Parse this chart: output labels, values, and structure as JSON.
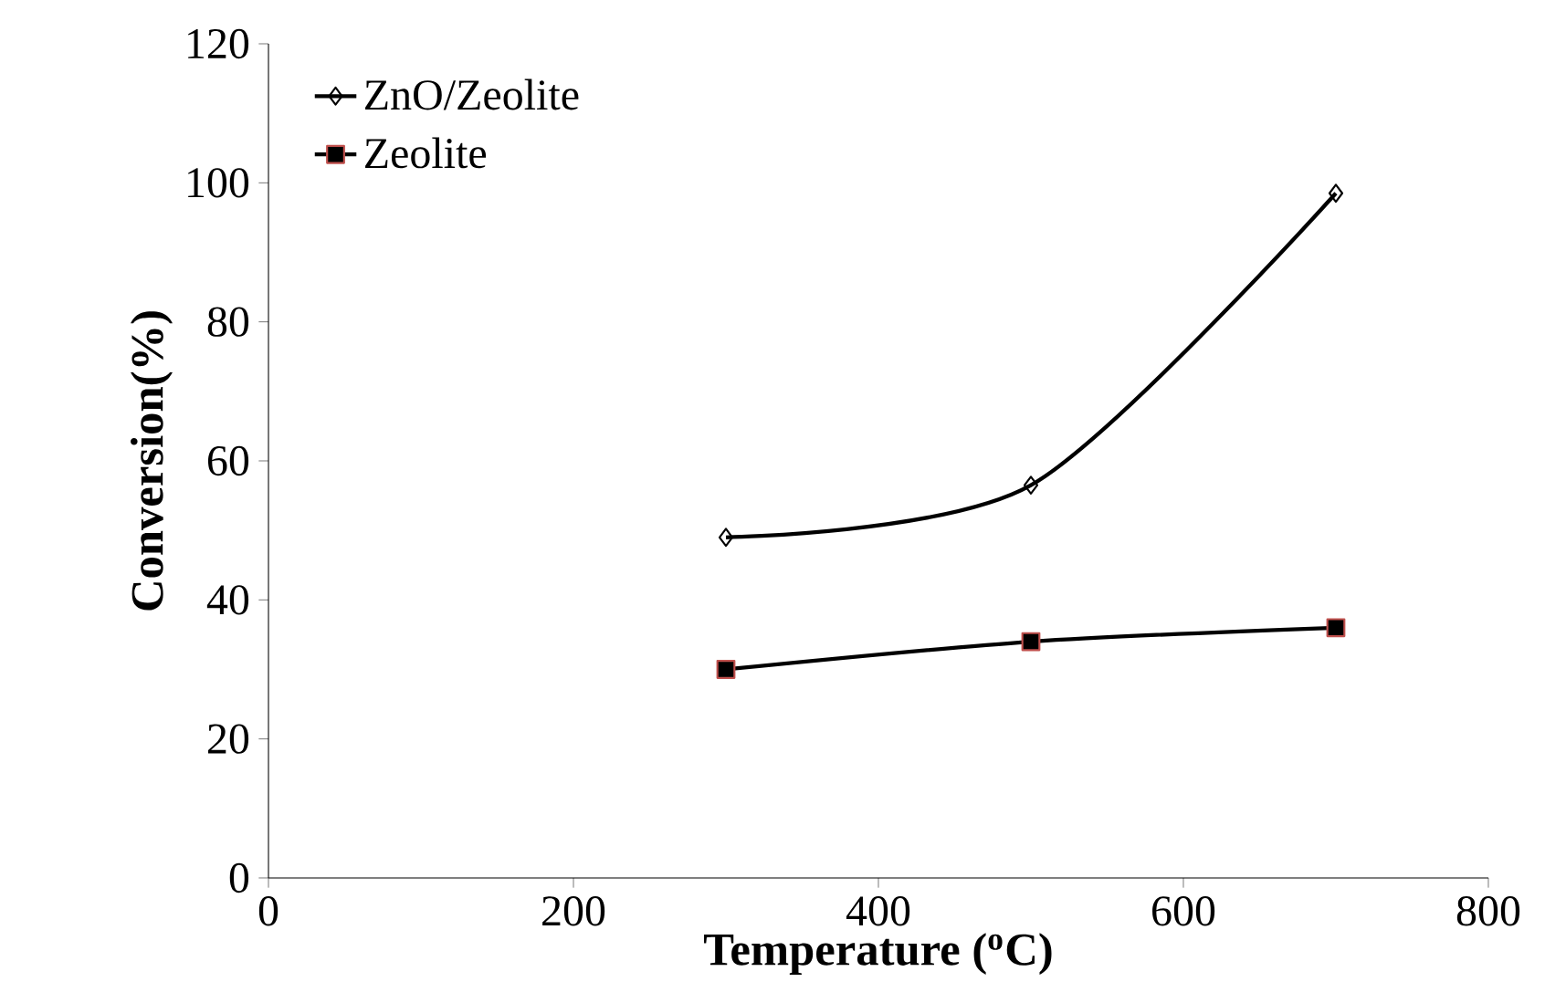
{
  "chart_data": {
    "type": "line",
    "xlabel": "Temperature ($^{o}$C)",
    "ylabel": "Conversion(%)",
    "xlim": [
      0,
      800
    ],
    "xticks": [
      0,
      200,
      400,
      600,
      800
    ],
    "ylim": [
      0,
      120
    ],
    "yticks": [
      0,
      20,
      40,
      60,
      80,
      100,
      120
    ],
    "grid": false,
    "legend": "top left",
    "line_style": "solid",
    "series": [
      {
        "name": "ZnO/Zeolite",
        "color": "#000000",
        "marker": "diamond",
        "x": [
          300,
          500,
          700
        ],
        "values": [
          49,
          56.5,
          98.5
        ]
      },
      {
        "name": "Zeolite",
        "color": "#000000",
        "marker": "square",
        "x": [
          300,
          500,
          700
        ],
        "values": [
          30,
          34,
          36
        ]
      }
    ]
  }
}
